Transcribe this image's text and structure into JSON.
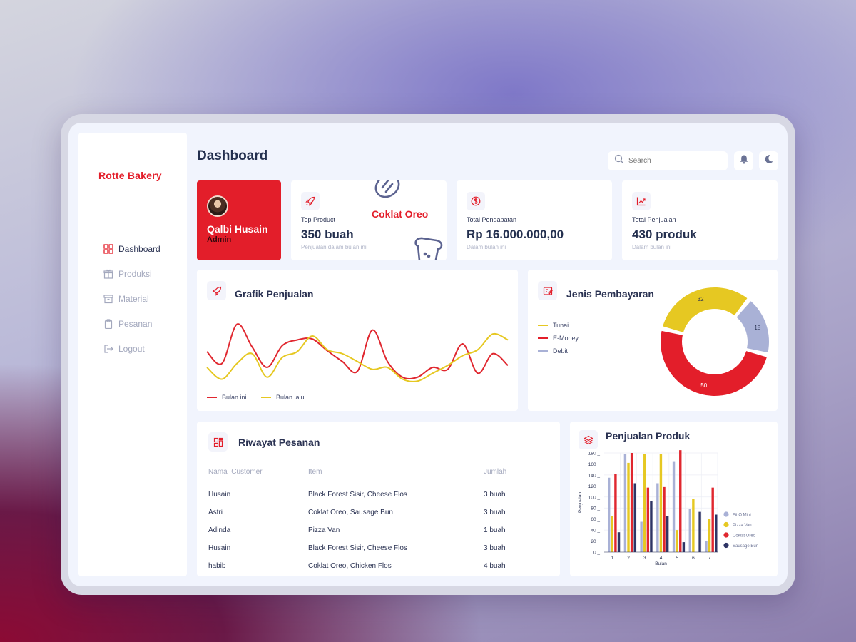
{
  "app": {
    "brand": "Rotte Bakery",
    "page_title": "Dashboard"
  },
  "sidebar": {
    "items": [
      {
        "label": "Dashboard",
        "icon": "grid-icon",
        "active": true
      },
      {
        "label": "Produksi",
        "icon": "gift-icon",
        "active": false
      },
      {
        "label": "Material",
        "icon": "archive-icon",
        "active": false
      },
      {
        "label": "Pesanan",
        "icon": "clipboard-icon",
        "active": false
      },
      {
        "label": "Logout",
        "icon": "logout-icon",
        "active": false
      }
    ]
  },
  "header": {
    "search_placeholder": "Search",
    "notification_icon": "bell-icon",
    "theme_icon": "moon-icon"
  },
  "profile": {
    "name": "Qalbi Husain",
    "role": "Admin"
  },
  "stats": [
    {
      "label": "Top Product",
      "product": "Coklat Oreo",
      "value": "350 buah",
      "sub": "Penjualan dalam bulan ini",
      "icon": "rocket-icon"
    },
    {
      "label": "Total Pendapatan",
      "value": "Rp 16.000.000,00",
      "sub": "Dalam bulan ini",
      "icon": "dollar-icon"
    },
    {
      "label": "Total Penjualan",
      "value": "430 produk",
      "sub": "Dalam bulan ini",
      "icon": "trend-icon"
    }
  ],
  "sales_chart": {
    "title": "Grafik Penjualan",
    "legend": [
      {
        "label": "Bulan ini",
        "color": "#e0272f"
      },
      {
        "label": "Bulan lalu",
        "color": "#e6c822"
      }
    ]
  },
  "payment": {
    "title": "Jenis Pembayaran",
    "legend": [
      {
        "label": "Tunai",
        "color": "#e6c822"
      },
      {
        "label": "E-Money",
        "color": "#e31e2a"
      },
      {
        "label": "Debit",
        "color": "#a9b1d6"
      }
    ],
    "labels": [
      "32",
      "18",
      "50"
    ]
  },
  "orders": {
    "title": "Riwayat Pesanan",
    "headers": [
      "Nama  Customer",
      "Item",
      "Jumlah"
    ],
    "rows": [
      [
        "Husain",
        "Black Forest Sisir, Cheese Flos",
        "3 buah"
      ],
      [
        "Astri",
        "Coklat Oreo, Sausage Bun",
        "3 buah"
      ],
      [
        "Adinda",
        "Pizza Van",
        "1 buah"
      ],
      [
        "Husain",
        "Black Forest Sisir, Cheese Flos",
        "3 buah"
      ],
      [
        "habib",
        "Coklat Oreo, Chicken Flos",
        "4 buah"
      ]
    ]
  },
  "chart_data": [
    {
      "type": "line",
      "title": "Grafik Penjualan",
      "x": [
        0,
        1,
        2,
        3,
        4,
        5,
        6,
        7,
        8,
        9,
        10,
        11,
        12,
        13,
        14,
        15,
        16,
        17,
        18,
        19,
        20
      ],
      "series": [
        {
          "name": "Bulan ini",
          "color": "#e0272f",
          "values": [
            40,
            28,
            68,
            45,
            24,
            46,
            52,
            53,
            41,
            30,
            20,
            62,
            30,
            14,
            14,
            24,
            22,
            48,
            18,
            38,
            26
          ]
        },
        {
          "name": "Bulan lalu",
          "color": "#e6c822",
          "values": [
            24,
            12,
            28,
            38,
            14,
            34,
            40,
            56,
            42,
            38,
            30,
            22,
            24,
            12,
            10,
            18,
            26,
            36,
            42,
            58,
            52
          ]
        }
      ],
      "ylim": [
        0,
        80
      ]
    },
    {
      "type": "pie",
      "title": "Jenis Pembayaran",
      "categories": [
        "Tunai",
        "E-Money",
        "Debit"
      ],
      "values": [
        32,
        50,
        18
      ],
      "colors": [
        "#e6c822",
        "#e31e2a",
        "#a9b1d6"
      ]
    },
    {
      "type": "bar",
      "title": "Penjualan Produk",
      "xlabel": "Bulan",
      "ylabel": "Penjualan",
      "categories": [
        "1",
        "2",
        "3",
        "4",
        "5",
        "6",
        "7"
      ],
      "yticks": [
        0,
        20,
        40,
        60,
        80,
        100,
        120,
        140,
        160,
        180
      ],
      "ylim": [
        0,
        180
      ],
      "series": [
        {
          "name": "Fit O Mini",
          "color": "#a9b1d6",
          "values": [
            135,
            178,
            55,
            125,
            165,
            78,
            20
          ]
        },
        {
          "name": "Pizza Van",
          "color": "#e6c822",
          "values": [
            65,
            162,
            178,
            178,
            40,
            97,
            60
          ]
        },
        {
          "name": "Coklat Oreo",
          "color": "#e0272f",
          "values": [
            142,
            180,
            117,
            118,
            185,
            0,
            117
          ]
        },
        {
          "name": "Sausage Bun",
          "color": "#2f3565",
          "values": [
            36,
            125,
            92,
            66,
            18,
            73,
            68
          ]
        }
      ]
    }
  ]
}
